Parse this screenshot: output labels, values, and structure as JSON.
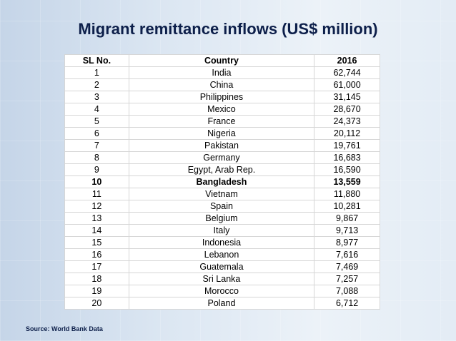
{
  "title": "Migrant remittance inflows (US$ million)",
  "table": {
    "headers": [
      "SL No.",
      "Country",
      "2016"
    ],
    "rows": [
      [
        "1",
        "India",
        "62,744"
      ],
      [
        "2",
        "China",
        "61,000"
      ],
      [
        "3",
        "Philippines",
        "31,145"
      ],
      [
        "4",
        "Mexico",
        "28,670"
      ],
      [
        "5",
        "France",
        "24,373"
      ],
      [
        "6",
        "Nigeria",
        "20,112"
      ],
      [
        "7",
        "Pakistan",
        "19,761"
      ],
      [
        "8",
        "Germany",
        "16,683"
      ],
      [
        "9",
        "Egypt, Arab Rep.",
        "16,590"
      ],
      [
        "10",
        "Bangladesh",
        "13,559"
      ],
      [
        "11",
        "Vietnam",
        "11,880"
      ],
      [
        "12",
        "Spain",
        "10,281"
      ],
      [
        "13",
        "Belgium",
        "9,867"
      ],
      [
        "14",
        "Italy",
        "9,713"
      ],
      [
        "15",
        "Indonesia",
        "8,977"
      ],
      [
        "16",
        "Lebanon",
        "7,616"
      ],
      [
        "17",
        "Guatemala",
        "7,469"
      ],
      [
        "18",
        "Sri Lanka",
        "7,257"
      ],
      [
        "19",
        "Morocco",
        "7,088"
      ],
      [
        "20",
        "Poland",
        "6,712"
      ]
    ],
    "highlighted_row": 9
  },
  "source": "Source: World Bank Data"
}
